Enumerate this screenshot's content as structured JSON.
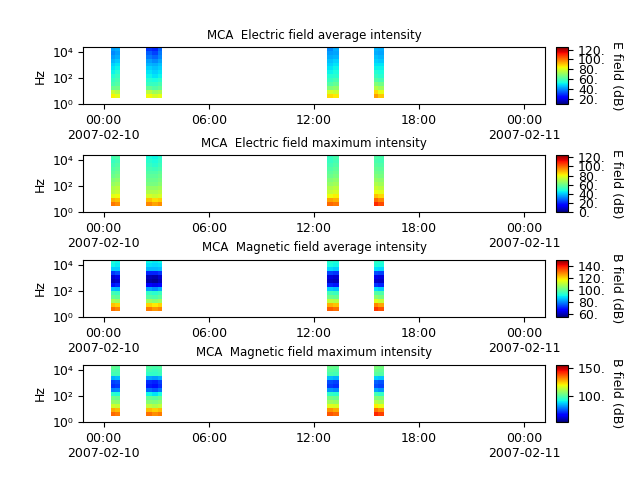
{
  "chart_data": [
    {
      "type": "spectrogram",
      "title": "MCA  Electric field average intensity",
      "y_label": "Hz",
      "colorbar_label": "E field (dB)",
      "log": "y",
      "xlim": [
        "2007-02-09T22:50",
        "2007-02-11T01:12"
      ],
      "xticks": [
        {
          "value": "2007-02-10T00:00",
          "label": "00:00\n2007-02-10"
        },
        {
          "value": "2007-02-10T06:00",
          "label": "06:00"
        },
        {
          "value": "2007-02-10T12:00",
          "label": "12:00"
        },
        {
          "value": "2007-02-10T18:00",
          "label": "18:00"
        },
        {
          "value": "2007-02-11T00:00",
          "label": "00:00\n2007-02-11"
        }
      ],
      "ylim": [
        1,
        25000
      ],
      "yticks": [
        {
          "value": 1,
          "label": "10⁰"
        },
        {
          "value": 100,
          "label": "10²"
        },
        {
          "value": 10000,
          "label": "10⁴"
        }
      ],
      "frequency_edges": [
        3,
        6,
        12,
        25,
        50,
        100,
        200,
        400,
        800,
        1600,
        3200,
        6400,
        12800,
        25000
      ],
      "colorbar_range": [
        10,
        125
      ],
      "colorbar_ticks": [
        {
          "value": 20,
          "label": "20."
        },
        {
          "value": 40,
          "label": "40."
        },
        {
          "value": 60,
          "label": "60."
        },
        {
          "value": 80,
          "label": "80."
        },
        {
          "value": 100,
          "label": "100."
        },
        {
          "value": 120,
          "label": "120."
        }
      ],
      "bursts": [
        {
          "time_edges": [
            "2007-02-10T00:25",
            "2007-02-10T00:40",
            "2007-02-10T00:55"
          ],
          "cells": [
            [
              85,
              78,
              65,
              60,
              58,
              55,
              52,
              50,
              48,
              45,
              42,
              40,
              42
            ],
            [
              82,
              75,
              66,
              62,
              60,
              58,
              55,
              52,
              50,
              47,
              44,
              42,
              44
            ]
          ]
        },
        {
          "time_edges": [
            "2007-02-10T02:25",
            "2007-02-10T02:45",
            "2007-02-10T03:05",
            "2007-02-10T03:20"
          ],
          "cells": [
            [
              84,
              76,
              64,
              58,
              55,
              52,
              50,
              48,
              45,
              42,
              38,
              35,
              30
            ],
            [
              80,
              72,
              62,
              58,
              54,
              50,
              48,
              46,
              44,
              40,
              36,
              32,
              28
            ],
            [
              82,
              74,
              64,
              60,
              56,
              52,
              50,
              48,
              46,
              43,
              40,
              38,
              36
            ]
          ]
        },
        {
          "time_edges": [
            "2007-02-10T12:45",
            "2007-02-10T13:05",
            "2007-02-10T13:25"
          ],
          "cells": [
            [
              88,
              80,
              68,
              62,
              58,
              55,
              52,
              50,
              48,
              46,
              44,
              42,
              40
            ],
            [
              86,
              78,
              70,
              64,
              60,
              56,
              54,
              52,
              50,
              48,
              45,
              43,
              44
            ]
          ]
        },
        {
          "time_edges": [
            "2007-02-10T15:25",
            "2007-02-10T15:40",
            "2007-02-10T16:00"
          ],
          "cells": [
            [
              95,
              88,
              75,
              68,
              62,
              58,
              55,
              52,
              50,
              48,
              46,
              44,
              45
            ],
            [
              90,
              82,
              72,
              66,
              60,
              56,
              54,
              52,
              50,
              47,
              45,
              43,
              44
            ]
          ]
        }
      ]
    },
    {
      "type": "spectrogram",
      "title": "MCA  Electric field maximum intensity",
      "y_label": "Hz",
      "colorbar_label": "E field (dB)",
      "log": "y",
      "xlim": [
        "2007-02-09T22:50",
        "2007-02-11T01:12"
      ],
      "xticks": [
        {
          "value": "2007-02-10T00:00",
          "label": "00:00\n2007-02-10"
        },
        {
          "value": "2007-02-10T06:00",
          "label": "06:00"
        },
        {
          "value": "2007-02-10T12:00",
          "label": "12:00"
        },
        {
          "value": "2007-02-10T18:00",
          "label": "18:00"
        },
        {
          "value": "2007-02-11T00:00",
          "label": "00:00\n2007-02-11"
        }
      ],
      "ylim": [
        1,
        25000
      ],
      "yticks": [
        {
          "value": 1,
          "label": "10⁰"
        },
        {
          "value": 100,
          "label": "10²"
        },
        {
          "value": 10000,
          "label": "10⁴"
        }
      ],
      "frequency_edges": [
        3,
        6,
        12,
        25,
        50,
        100,
        200,
        400,
        800,
        1600,
        3200,
        6400,
        12800,
        25000
      ],
      "colorbar_range": [
        0,
        125
      ],
      "colorbar_ticks": [
        {
          "value": 0,
          "label": "0."
        },
        {
          "value": 20,
          "label": "20."
        },
        {
          "value": 40,
          "label": "40."
        },
        {
          "value": 60,
          "label": "60."
        },
        {
          "value": 80,
          "label": "80."
        },
        {
          "value": 100,
          "label": "100."
        },
        {
          "value": 120,
          "label": "120."
        }
      ],
      "bursts": [
        {
          "time_edges": [
            "2007-02-10T00:25",
            "2007-02-10T00:40",
            "2007-02-10T00:55"
          ],
          "cells": [
            [
              98,
              90,
              78,
              72,
              70,
              66,
              63,
              60,
              58,
              56,
              54,
              52,
              54
            ],
            [
              95,
              88,
              80,
              74,
              72,
              68,
              65,
              62,
              60,
              58,
              56,
              54,
              56
            ]
          ]
        },
        {
          "time_edges": [
            "2007-02-10T02:25",
            "2007-02-10T02:45",
            "2007-02-10T03:05",
            "2007-02-10T03:20"
          ],
          "cells": [
            [
              96,
              88,
              76,
              70,
              66,
              62,
              60,
              58,
              56,
              54,
              52,
              50,
              48
            ],
            [
              92,
              84,
              74,
              70,
              66,
              62,
              60,
              58,
              56,
              53,
              50,
              48,
              46
            ],
            [
              95,
              86,
              76,
              72,
              68,
              64,
              62,
              60,
              58,
              55,
              53,
              51,
              50
            ]
          ]
        },
        {
          "time_edges": [
            "2007-02-10T12:45",
            "2007-02-10T13:05",
            "2007-02-10T13:25"
          ],
          "cells": [
            [
              100,
              92,
              80,
              74,
              70,
              66,
              63,
              60,
              58,
              56,
              54,
              52,
              52
            ],
            [
              98,
              90,
              82,
              76,
              72,
              68,
              65,
              62,
              60,
              58,
              56,
              54,
              55
            ]
          ]
        },
        {
          "time_edges": [
            "2007-02-10T15:25",
            "2007-02-10T15:40",
            "2007-02-10T16:00"
          ],
          "cells": [
            [
              108,
              100,
              88,
              80,
              74,
              70,
              66,
              63,
              61,
              59,
              57,
              55,
              56
            ],
            [
              104,
              96,
              85,
              78,
              72,
              68,
              65,
              62,
              60,
              58,
              56,
              54,
              55
            ]
          ]
        }
      ]
    },
    {
      "type": "spectrogram",
      "title": "MCA  Magnetic field average intensity",
      "y_label": "Hz",
      "colorbar_label": "B field (dB)",
      "log": "y",
      "xlim": [
        "2007-02-09T22:50",
        "2007-02-11T01:12"
      ],
      "xticks": [
        {
          "value": "2007-02-10T00:00",
          "label": "00:00\n2007-02-10"
        },
        {
          "value": "2007-02-10T06:00",
          "label": "06:00"
        },
        {
          "value": "2007-02-10T12:00",
          "label": "12:00"
        },
        {
          "value": "2007-02-10T18:00",
          "label": "18:00"
        },
        {
          "value": "2007-02-11T00:00",
          "label": "00:00\n2007-02-11"
        }
      ],
      "ylim": [
        1,
        25000
      ],
      "yticks": [
        {
          "value": 1,
          "label": "10⁰"
        },
        {
          "value": 100,
          "label": "10²"
        },
        {
          "value": 10000,
          "label": "10⁴"
        }
      ],
      "frequency_edges": [
        3,
        6,
        12,
        25,
        50,
        100,
        200,
        400,
        800,
        1600,
        3200,
        6400,
        12800,
        25000
      ],
      "colorbar_range": [
        55,
        150
      ],
      "colorbar_ticks": [
        {
          "value": 60,
          "label": "60."
        },
        {
          "value": 80,
          "label": "80."
        },
        {
          "value": 100,
          "label": "100."
        },
        {
          "value": 120,
          "label": "120."
        },
        {
          "value": 140,
          "label": "140."
        }
      ],
      "bursts": [
        {
          "time_edges": [
            "2007-02-10T00:25",
            "2007-02-10T00:40",
            "2007-02-10T00:55"
          ],
          "cells": [
            [
              130,
              122,
              108,
              100,
              96,
              85,
              68,
              60,
              62,
              72,
              86,
              90,
              92
            ],
            [
              128,
              120,
              106,
              99,
              95,
              84,
              70,
              62,
              64,
              74,
              86,
              89,
              90
            ]
          ]
        },
        {
          "time_edges": [
            "2007-02-10T02:25",
            "2007-02-10T02:45",
            "2007-02-10T03:05",
            "2007-02-10T03:20"
          ],
          "cells": [
            [
              129,
              120,
              106,
              98,
              94,
              82,
              66,
              58,
              60,
              70,
              84,
              88,
              90
            ],
            [
              126,
              118,
              104,
              97,
              93,
              80,
              64,
              57,
              59,
              70,
              84,
              87,
              89
            ],
            [
              128,
              120,
              106,
              99,
              95,
              83,
              67,
              60,
              62,
              72,
              85,
              88,
              90
            ]
          ]
        },
        {
          "time_edges": [
            "2007-02-10T12:45",
            "2007-02-10T13:05",
            "2007-02-10T13:25"
          ],
          "cells": [
            [
              132,
              124,
              110,
              101,
              96,
              86,
              70,
              61,
              63,
              73,
              87,
              91,
              93
            ],
            [
              130,
              122,
              109,
              100,
              95,
              85,
              69,
              60,
              62,
              72,
              86,
              90,
              92
            ]
          ]
        },
        {
          "time_edges": [
            "2007-02-10T15:25",
            "2007-02-10T15:40",
            "2007-02-10T16:00"
          ],
          "cells": [
            [
              136,
              128,
              114,
              104,
              98,
              88,
              72,
              62,
              64,
              74,
              88,
              92,
              94
            ],
            [
              133,
              125,
              111,
              102,
              97,
              86,
              70,
              61,
              63,
              73,
              87,
              91,
              93
            ]
          ]
        }
      ]
    },
    {
      "type": "spectrogram",
      "title": "MCA  Magnetic field maximum intensity",
      "y_label": "Hz",
      "colorbar_label": "B field (dB)",
      "log": "y",
      "xlim": [
        "2007-02-09T22:50",
        "2007-02-11T01:12"
      ],
      "xticks": [
        {
          "value": "2007-02-10T00:00",
          "label": "00:00\n2007-02-10"
        },
        {
          "value": "2007-02-10T06:00",
          "label": "06:00"
        },
        {
          "value": "2007-02-10T12:00",
          "label": "12:00"
        },
        {
          "value": "2007-02-10T18:00",
          "label": "18:00"
        },
        {
          "value": "2007-02-11T00:00",
          "label": "00:00\n2007-02-11"
        }
      ],
      "ylim": [
        1,
        25000
      ],
      "yticks": [
        {
          "value": 1,
          "label": "10⁰"
        },
        {
          "value": 100,
          "label": "10²"
        },
        {
          "value": 10000,
          "label": "10⁴"
        }
      ],
      "frequency_edges": [
        3,
        6,
        12,
        25,
        50,
        100,
        200,
        400,
        800,
        1600,
        3200,
        6400,
        12800,
        25000
      ],
      "colorbar_range": [
        55,
        155
      ],
      "colorbar_ticks": [
        {
          "value": 100,
          "label": "100."
        },
        {
          "value": 150,
          "label": "150."
        }
      ],
      "bursts": [
        {
          "time_edges": [
            "2007-02-10T00:25",
            "2007-02-10T00:40",
            "2007-02-10T00:55"
          ],
          "cells": [
            [
              135,
              128,
              115,
              108,
              104,
              95,
              80,
              72,
              74,
              85,
              98,
              100,
              102
            ],
            [
              133,
              126,
              114,
              107,
              103,
              94,
              81,
              73,
              75,
              86,
              98,
              99,
              101
            ]
          ]
        },
        {
          "time_edges": [
            "2007-02-10T02:25",
            "2007-02-10T02:45",
            "2007-02-10T03:05",
            "2007-02-10T03:20"
          ],
          "cells": [
            [
              134,
              126,
              113,
              106,
              102,
              92,
              78,
              70,
              72,
              84,
              96,
              98,
              100
            ],
            [
              131,
              124,
              111,
              105,
              101,
              90,
              76,
              69,
              71,
              83,
              96,
              97,
              99
            ],
            [
              133,
              126,
              113,
              107,
              103,
              93,
              79,
              72,
              74,
              85,
              97,
              98,
              100
            ]
          ]
        },
        {
          "time_edges": [
            "2007-02-10T12:45",
            "2007-02-10T13:05",
            "2007-02-10T13:25"
          ],
          "cells": [
            [
              137,
              130,
              117,
              109,
              104,
              96,
              82,
              73,
              75,
              86,
              99,
              101,
              103
            ],
            [
              135,
              128,
              116,
              108,
              103,
              95,
              81,
              72,
              74,
              85,
              98,
              100,
              102
            ]
          ]
        },
        {
          "time_edges": [
            "2007-02-10T15:25",
            "2007-02-10T15:40",
            "2007-02-10T16:00"
          ],
          "cells": [
            [
              142,
              134,
              121,
              112,
              106,
              98,
              84,
              75,
              77,
              88,
              101,
              103,
              105
            ],
            [
              139,
              131,
              118,
              110,
              105,
              96,
              82,
              74,
              76,
              87,
              100,
              102,
              104
            ]
          ]
        }
      ]
    }
  ]
}
